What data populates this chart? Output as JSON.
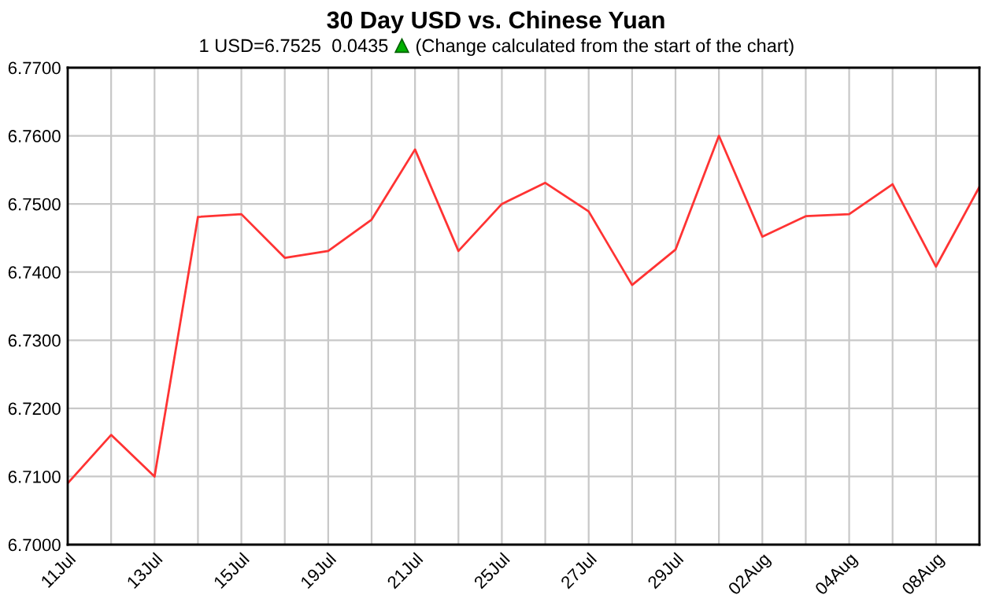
{
  "chart_data": {
    "type": "line",
    "title": "30 Day USD vs. Chinese Yuan",
    "subtitle": "1 USD=6.7525  0.0435",
    "annotations": [
      "(Change calculated from the start of the chart)"
    ],
    "categories": [
      "11Jul",
      null,
      "13Jul",
      null,
      "15Jul",
      null,
      "19Jul",
      null,
      "21Jul",
      null,
      "25Jul",
      null,
      "27Jul",
      null,
      "29Jul",
      null,
      "02Aug",
      null,
      "04Aug",
      null,
      "08Aug",
      null
    ],
    "series": [
      {
        "color": "#ff3333",
        "values": [
          6.709,
          6.7161,
          6.71,
          6.7481,
          6.7485,
          6.7421,
          6.7431,
          6.7477,
          6.758,
          6.7431,
          6.75,
          6.7531,
          6.7489,
          6.7381,
          6.7433,
          6.76,
          6.7452,
          6.7482,
          6.7485,
          6.7529,
          6.7408,
          6.7525
        ]
      }
    ],
    "ylim": [
      6.7,
      6.77
    ],
    "yticks": [
      {
        "value": 6.7,
        "label": "6.7000"
      },
      {
        "value": 6.71,
        "label": "6.7100"
      },
      {
        "value": 6.72,
        "label": "6.7200"
      },
      {
        "value": 6.73,
        "label": "6.7300"
      },
      {
        "value": 6.74,
        "label": "6.7400"
      },
      {
        "value": 6.75,
        "label": "6.7500"
      },
      {
        "value": 6.76,
        "label": "6.7600"
      },
      {
        "value": 6.77,
        "label": "6.7700"
      }
    ],
    "grid": true,
    "legend": false,
    "marker": "none",
    "line_style": "solid"
  }
}
